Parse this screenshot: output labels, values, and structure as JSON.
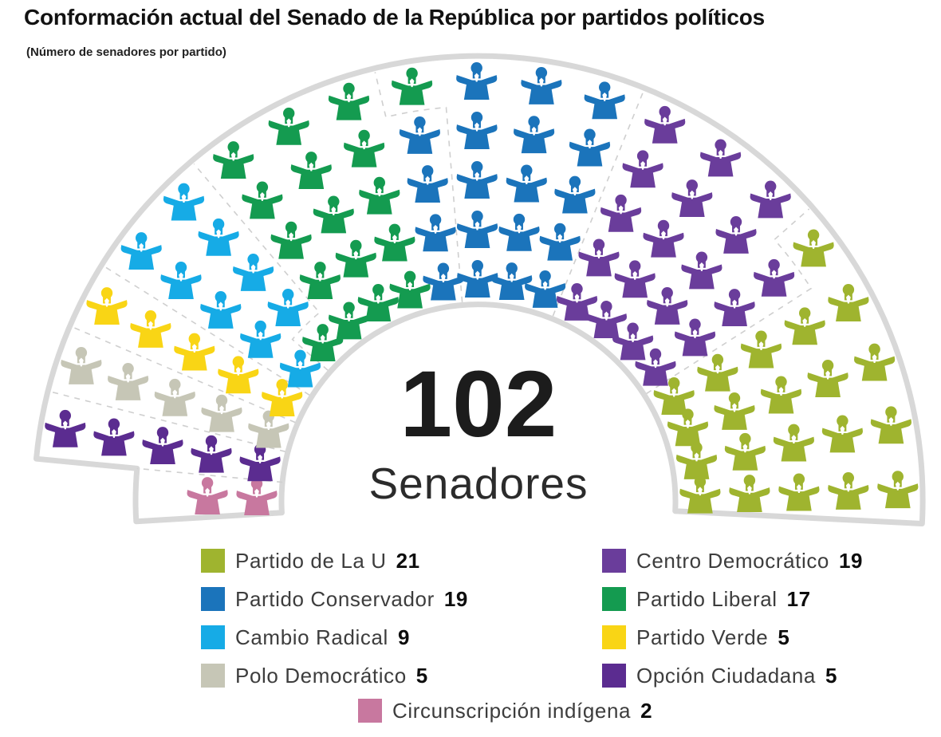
{
  "title": "Conformación actual del Senado de la República por partidos políticos",
  "subtitle": "(Número de senadores por partido)",
  "center": {
    "total": "102",
    "label": "Senadores"
  },
  "parties": [
    {
      "name": "Partido de La U",
      "seats": 21,
      "color": "#9fb42f",
      "legend_column": "left"
    },
    {
      "name": "Partido Conservador",
      "seats": 19,
      "color": "#1b74bb",
      "legend_column": "left"
    },
    {
      "name": "Cambio Radical",
      "seats": 9,
      "color": "#16abe6",
      "legend_column": "left"
    },
    {
      "name": "Polo Democrático",
      "seats": 5,
      "color": "#c6c6b6",
      "legend_column": "left"
    },
    {
      "name": "Centro Democrático",
      "seats": 19,
      "color": "#6a3d9b",
      "legend_column": "right"
    },
    {
      "name": "Partido Liberal",
      "seats": 17,
      "color": "#149b50",
      "legend_column": "right"
    },
    {
      "name": "Partido Verde",
      "seats": 5,
      "color": "#f9d515",
      "legend_column": "right"
    },
    {
      "name": "Opción Ciudadana",
      "seats": 5,
      "color": "#5b2c90",
      "legend_column": "right"
    },
    {
      "name": "Circunscripción indígena",
      "seats": 2,
      "color": "#c8789f",
      "legend_column": "bottom"
    }
  ],
  "chart_data": {
    "type": "pie",
    "subtype": "parliament-hemicycle",
    "title": "Conformación actual del Senado de la República por partidos políticos",
    "categories": [
      "Partido de La U",
      "Centro Democrático",
      "Partido Conservador",
      "Partido Liberal",
      "Cambio Radical",
      "Partido Verde",
      "Polo Democrático",
      "Opción Ciudadana",
      "Circunscripción indígena"
    ],
    "values": [
      21,
      19,
      19,
      17,
      9,
      5,
      5,
      5,
      2
    ],
    "colors": [
      "#9fb42f",
      "#6a3d9b",
      "#1b74bb",
      "#149b50",
      "#16abe6",
      "#f9d515",
      "#c6c6b6",
      "#5b2c90",
      "#c8789f"
    ],
    "total_seats": 102,
    "center_label": "102 Senadores",
    "legend_position": "bottom",
    "seating_order_from_left": [
      "Circunscripción indígena",
      "Opción Ciudadana",
      "Polo Democrático",
      "Partido Verde",
      "Cambio Radical",
      "Partido Liberal",
      "Partido Conservador",
      "Centro Democrático",
      "Partido de La U"
    ]
  }
}
